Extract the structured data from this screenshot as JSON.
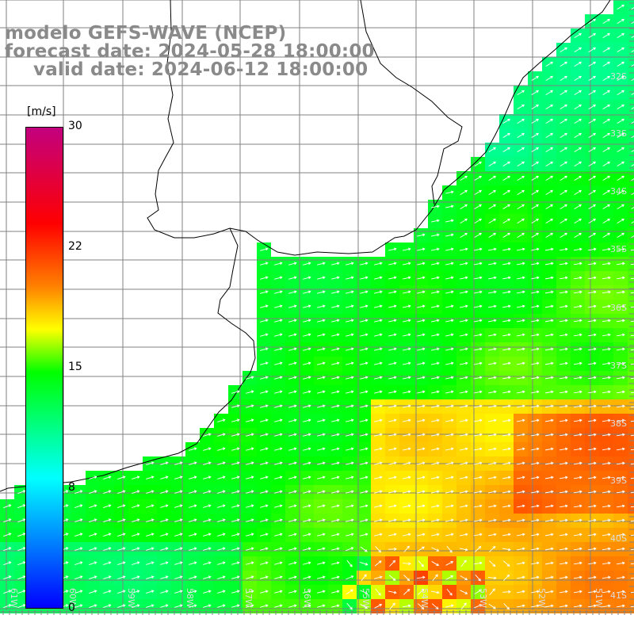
{
  "title": {
    "line1": "modelo GEFS-WAVE (NCEP)",
    "line2": "forecast date: 2024-05-28 18:00:00",
    "line3": "valid date: 2024-06-12 18:00:00"
  },
  "colorbar": {
    "unit": "[m/s]",
    "ticks": [
      "30",
      "22",
      "15",
      "8",
      "0"
    ],
    "colors": [
      "#0000ff",
      "#00ffff",
      "#00ff00",
      "#ffff00",
      "#ff8000",
      "#ff0000",
      "#c2007f"
    ]
  },
  "axes": {
    "lat_labels": [
      "32S",
      "33S",
      "34S",
      "35S",
      "36S",
      "37S",
      "38S",
      "39S",
      "40S",
      "41S"
    ],
    "lon_labels": [
      "61W",
      "60W",
      "59W",
      "58W",
      "57W",
      "56W",
      "55W",
      "54W",
      "53W",
      "52W",
      "51W"
    ],
    "lon_range": [
      -61,
      -50
    ],
    "lat_range": [
      -41.6,
      -31.1
    ]
  },
  "map_features": {
    "land_color": "#ffffff",
    "coastline_color": "#000000",
    "grid_color": "#808080",
    "vector_color": "#ffffff"
  }
}
